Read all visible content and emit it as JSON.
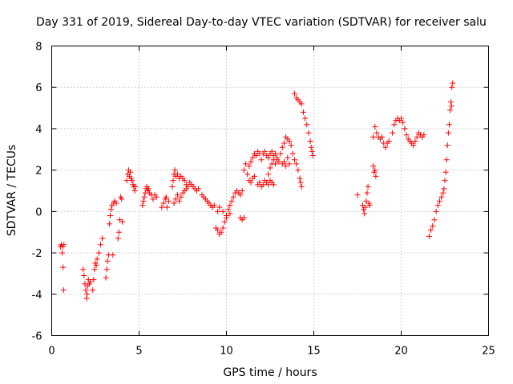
{
  "chart_data": {
    "type": "scatter",
    "title": "Day 331 of 2019, Sidereal Day-to-day VTEC variation (SDTVAR) for receiver salu",
    "xlabel": "GPS time / hours",
    "ylabel": "SDTVAR / TECUs",
    "xlim": [
      0,
      25
    ],
    "ylim": [
      -6,
      8
    ],
    "xticks": [
      "0",
      "5",
      "10",
      "15",
      "20",
      "25"
    ],
    "yticks": [
      "-6",
      "-4",
      "-2",
      "0",
      "2",
      "4",
      "6",
      "8"
    ],
    "grid": true,
    "marker": "plus",
    "series": [
      {
        "name": "SDTVAR",
        "color": "#ff0000",
        "points": [
          [
            0.5,
            -1.7
          ],
          [
            0.55,
            -1.6
          ],
          [
            0.6,
            -2.0
          ],
          [
            0.62,
            -1.7
          ],
          [
            0.65,
            -2.7
          ],
          [
            0.68,
            -3.8
          ],
          [
            0.7,
            -1.6
          ],
          [
            1.8,
            -2.8
          ],
          [
            1.85,
            -3.1
          ],
          [
            1.9,
            -3.5
          ],
          [
            1.95,
            -3.8
          ],
          [
            2.0,
            -4.2
          ],
          [
            2.02,
            -4.0
          ],
          [
            2.05,
            -3.6
          ],
          [
            2.1,
            -3.3
          ],
          [
            2.15,
            -3.5
          ],
          [
            2.2,
            -3.4
          ],
          [
            2.35,
            -3.8
          ],
          [
            2.4,
            -3.3
          ],
          [
            2.45,
            -2.8
          ],
          [
            2.5,
            -2.5
          ],
          [
            2.55,
            -2.6
          ],
          [
            2.6,
            -2.3
          ],
          [
            2.7,
            -2.0
          ],
          [
            2.8,
            -1.6
          ],
          [
            2.9,
            -1.3
          ],
          [
            3.1,
            -3.2
          ],
          [
            3.15,
            -2.8
          ],
          [
            3.2,
            -2.4
          ],
          [
            3.25,
            -2.1
          ],
          [
            3.3,
            -0.6
          ],
          [
            3.35,
            -0.2
          ],
          [
            3.4,
            0.1
          ],
          [
            3.45,
            0.3
          ],
          [
            3.5,
            -2.1
          ],
          [
            3.55,
            0.4
          ],
          [
            3.6,
            0.5
          ],
          [
            3.7,
            0.4
          ],
          [
            3.8,
            -1.3
          ],
          [
            3.85,
            -1.0
          ],
          [
            3.9,
            -0.4
          ],
          [
            3.95,
            0.7
          ],
          [
            4.0,
            0.6
          ],
          [
            4.05,
            -0.5
          ],
          [
            4.3,
            1.5
          ],
          [
            4.35,
            1.8
          ],
          [
            4.4,
            2.0
          ],
          [
            4.45,
            1.7
          ],
          [
            4.5,
            1.9
          ],
          [
            4.55,
            1.6
          ],
          [
            4.6,
            1.5
          ],
          [
            4.65,
            1.3
          ],
          [
            4.7,
            1.2
          ],
          [
            4.75,
            1.0
          ],
          [
            4.8,
            1.2
          ],
          [
            5.2,
            0.3
          ],
          [
            5.25,
            0.5
          ],
          [
            5.3,
            0.7
          ],
          [
            5.35,
            0.9
          ],
          [
            5.4,
            1.1
          ],
          [
            5.45,
            1.2
          ],
          [
            5.5,
            1.0
          ],
          [
            5.55,
            1.1
          ],
          [
            5.6,
            0.9
          ],
          [
            5.7,
            0.8
          ],
          [
            5.8,
            0.6
          ],
          [
            5.9,
            0.8
          ],
          [
            6.0,
            0.7
          ],
          [
            6.3,
            0.2
          ],
          [
            6.4,
            0.4
          ],
          [
            6.5,
            0.6
          ],
          [
            6.55,
            0.7
          ],
          [
            6.6,
            0.2
          ],
          [
            6.7,
            0.5
          ],
          [
            6.9,
            1.2
          ],
          [
            6.95,
            1.5
          ],
          [
            7.0,
            1.8
          ],
          [
            7.05,
            2.0
          ],
          [
            7.1,
            1.7
          ],
          [
            7.2,
            1.8
          ],
          [
            7.3,
            1.6
          ],
          [
            7.4,
            1.7
          ],
          [
            7.5,
            1.6
          ],
          [
            7.6,
            1.5
          ],
          [
            7.7,
            1.3
          ],
          [
            7.0,
            0.4
          ],
          [
            7.1,
            0.6
          ],
          [
            7.2,
            0.8
          ],
          [
            7.3,
            0.5
          ],
          [
            7.4,
            0.7
          ],
          [
            7.5,
            0.9
          ],
          [
            7.6,
            1.0
          ],
          [
            7.7,
            1.1
          ],
          [
            7.8,
            1.2
          ],
          [
            7.9,
            1.4
          ],
          [
            8.0,
            1.3
          ],
          [
            8.1,
            1.2
          ],
          [
            8.2,
            1.1
          ],
          [
            8.3,
            1.0
          ],
          [
            8.4,
            1.1
          ],
          [
            8.6,
            0.8
          ],
          [
            8.7,
            0.7
          ],
          [
            8.8,
            0.6
          ],
          [
            8.9,
            0.5
          ],
          [
            9.0,
            0.4
          ],
          [
            9.1,
            0.3
          ],
          [
            9.2,
            0.2
          ],
          [
            9.3,
            0.3
          ],
          [
            9.4,
            -0.8
          ],
          [
            9.5,
            -0.9
          ],
          [
            9.6,
            -1.1
          ],
          [
            9.7,
            -1.0
          ],
          [
            9.8,
            -0.8
          ],
          [
            9.9,
            -0.5
          ],
          [
            10.0,
            -0.2
          ],
          [
            10.1,
            0.1
          ],
          [
            10.2,
            0.3
          ],
          [
            10.3,
            0.5
          ],
          [
            10.4,
            0.7
          ],
          [
            10.5,
            0.9
          ],
          [
            10.6,
            1.0
          ],
          [
            10.7,
            0.9
          ],
          [
            10.8,
            0.8
          ],
          [
            10.9,
            1.0
          ],
          [
            9.5,
            0.0
          ],
          [
            9.6,
            0.2
          ],
          [
            9.8,
            0.0
          ],
          [
            10.0,
            -0.3
          ],
          [
            10.2,
            -0.1
          ],
          [
            10.8,
            -0.3
          ],
          [
            10.9,
            -0.4
          ],
          [
            11.0,
            -0.3
          ],
          [
            11.0,
            2.0
          ],
          [
            11.1,
            2.3
          ],
          [
            11.2,
            1.8
          ],
          [
            11.3,
            1.5
          ],
          [
            11.4,
            1.4
          ],
          [
            11.5,
            1.6
          ],
          [
            11.6,
            1.7
          ],
          [
            11.3,
            2.2
          ],
          [
            11.4,
            2.4
          ],
          [
            11.5,
            2.6
          ],
          [
            11.6,
            2.8
          ],
          [
            11.7,
            2.7
          ],
          [
            11.8,
            2.9
          ],
          [
            11.9,
            2.8
          ],
          [
            12.0,
            2.5
          ],
          [
            12.1,
            2.8
          ],
          [
            12.2,
            2.9
          ],
          [
            12.3,
            2.7
          ],
          [
            12.4,
            2.6
          ],
          [
            11.8,
            1.3
          ],
          [
            11.9,
            1.4
          ],
          [
            12.0,
            1.2
          ],
          [
            12.1,
            1.3
          ],
          [
            12.2,
            1.5
          ],
          [
            12.3,
            1.4
          ],
          [
            12.4,
            1.3
          ],
          [
            12.5,
            1.5
          ],
          [
            12.6,
            1.4
          ],
          [
            12.7,
            1.3
          ],
          [
            12.4,
            1.8
          ],
          [
            12.5,
            2.1
          ],
          [
            12.6,
            2.3
          ],
          [
            12.7,
            2.5
          ],
          [
            12.8,
            2.3
          ],
          [
            12.9,
            2.5
          ],
          [
            12.5,
            2.8
          ],
          [
            12.6,
            2.9
          ],
          [
            12.7,
            2.7
          ],
          [
            12.8,
            2.8
          ],
          [
            12.9,
            2.6
          ],
          [
            13.0,
            2.4
          ],
          [
            13.1,
            2.8
          ],
          [
            13.2,
            3.1
          ],
          [
            13.3,
            3.3
          ],
          [
            13.4,
            3.6
          ],
          [
            13.5,
            3.5
          ],
          [
            13.6,
            3.4
          ],
          [
            13.7,
            3.2
          ],
          [
            13.8,
            2.8
          ],
          [
            13.9,
            2.5
          ],
          [
            14.0,
            2.3
          ],
          [
            14.1,
            2.0
          ],
          [
            14.2,
            1.6
          ],
          [
            14.25,
            1.4
          ],
          [
            14.3,
            1.2
          ],
          [
            13.2,
            2.3
          ],
          [
            13.3,
            2.4
          ],
          [
            13.4,
            2.2
          ],
          [
            13.5,
            2.6
          ],
          [
            13.6,
            2.3
          ],
          [
            13.9,
            5.7
          ],
          [
            14.0,
            5.5
          ],
          [
            14.1,
            5.4
          ],
          [
            14.2,
            5.3
          ],
          [
            14.3,
            5.2
          ],
          [
            14.4,
            4.8
          ],
          [
            14.5,
            4.5
          ],
          [
            14.6,
            4.2
          ],
          [
            14.7,
            3.8
          ],
          [
            14.8,
            3.4
          ],
          [
            14.85,
            3.1
          ],
          [
            14.9,
            2.9
          ],
          [
            14.95,
            2.7
          ],
          [
            17.5,
            0.8
          ],
          [
            17.8,
            0.3
          ],
          [
            17.85,
            0.1
          ],
          [
            17.9,
            -0.1
          ],
          [
            17.95,
            0.2
          ],
          [
            18.0,
            0.5
          ],
          [
            18.05,
            0.9
          ],
          [
            18.1,
            1.2
          ],
          [
            18.15,
            0.4
          ],
          [
            18.2,
            0.3
          ],
          [
            18.4,
            2.2
          ],
          [
            18.45,
            1.9
          ],
          [
            18.5,
            2.0
          ],
          [
            18.55,
            1.7
          ],
          [
            18.4,
            3.6
          ],
          [
            18.5,
            4.1
          ],
          [
            18.6,
            3.8
          ],
          [
            18.7,
            3.6
          ],
          [
            18.8,
            3.5
          ],
          [
            18.9,
            3.6
          ],
          [
            19.0,
            3.3
          ],
          [
            19.1,
            3.1
          ],
          [
            19.2,
            3.3
          ],
          [
            19.3,
            3.4
          ],
          [
            19.5,
            3.8
          ],
          [
            19.6,
            4.2
          ],
          [
            19.7,
            4.4
          ],
          [
            19.8,
            4.5
          ],
          [
            19.9,
            4.4
          ],
          [
            20.0,
            4.5
          ],
          [
            20.1,
            4.3
          ],
          [
            20.2,
            4.0
          ],
          [
            20.3,
            3.7
          ],
          [
            20.4,
            3.5
          ],
          [
            20.5,
            3.4
          ],
          [
            20.6,
            3.3
          ],
          [
            20.7,
            3.2
          ],
          [
            20.8,
            3.4
          ],
          [
            20.9,
            3.6
          ],
          [
            21.0,
            3.8
          ],
          [
            21.1,
            3.7
          ],
          [
            21.2,
            3.6
          ],
          [
            21.3,
            3.7
          ],
          [
            21.6,
            -1.2
          ],
          [
            21.7,
            -0.9
          ],
          [
            21.8,
            -0.7
          ],
          [
            21.9,
            -0.4
          ],
          [
            22.0,
            0.0
          ],
          [
            22.1,
            0.3
          ],
          [
            22.2,
            0.5
          ],
          [
            22.3,
            0.7
          ],
          [
            22.4,
            0.9
          ],
          [
            22.45,
            1.1
          ],
          [
            22.5,
            1.5
          ],
          [
            22.55,
            1.9
          ],
          [
            22.6,
            2.5
          ],
          [
            22.65,
            3.2
          ],
          [
            22.7,
            3.8
          ],
          [
            22.75,
            4.2
          ],
          [
            22.8,
            4.9
          ],
          [
            22.85,
            5.3
          ],
          [
            22.9,
            6.0
          ],
          [
            22.95,
            6.2
          ],
          [
            22.88,
            5.1
          ]
        ]
      }
    ]
  }
}
